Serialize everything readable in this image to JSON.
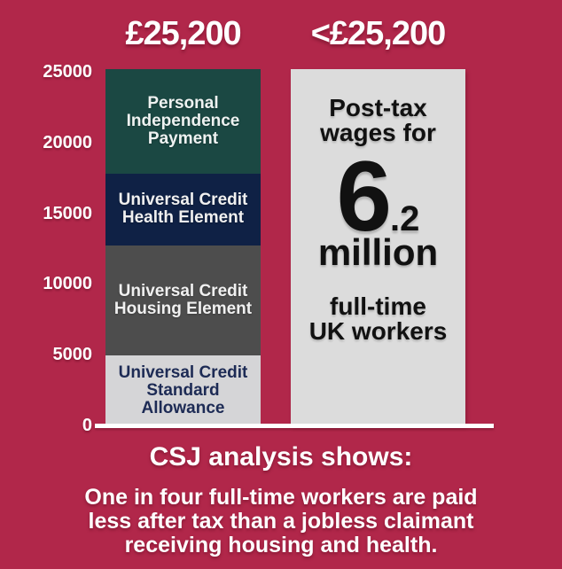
{
  "page": {
    "background_color": "#b1274a",
    "text_color_white": "#ffffff"
  },
  "chart_data": {
    "type": "bar",
    "stacked": true,
    "grid": false,
    "ylim": [
      0,
      25200
    ],
    "yticks": [
      {
        "label": "25000",
        "value": 25000
      },
      {
        "label": "20000",
        "value": 20000
      },
      {
        "label": "15000",
        "value": 15000
      },
      {
        "label": "10000",
        "value": 10000
      },
      {
        "label": "5000",
        "value": 5000
      },
      {
        "label": "0",
        "value": 0
      }
    ],
    "columns": [
      {
        "header": "£25,200",
        "total": 25200,
        "segments": [
          {
            "id": "uc-standard-allowance",
            "label_lines": [
              "Universal Credit",
              "Standard",
              "Allowance"
            ],
            "value": 4950,
            "color": "#d5d5d7",
            "text_color": "#1d2b55"
          },
          {
            "id": "uc-housing-element",
            "label_lines": [
              "Universal Credit",
              "Housing Element"
            ],
            "value": 7800,
            "color": "#4d4d4d",
            "text_color": "#f0f0f0"
          },
          {
            "id": "uc-health-element",
            "label_lines": [
              "Universal Credit",
              "Health Element"
            ],
            "value": 5050,
            "color": "#0f2145",
            "text_color": "#f0f0f0"
          },
          {
            "id": "personal-independence-payment",
            "label_lines": [
              "Personal",
              "Independence",
              "Payment"
            ],
            "value": 7400,
            "color": "#1b4843",
            "text_color": "#eef2f1"
          }
        ]
      },
      {
        "header": "<£25,200",
        "color": "#dcdcdc",
        "text_color": "#111111",
        "annotation": {
          "top_line_1": "Post-tax",
          "top_line_2": "wages for",
          "big_number": "6",
          "big_number_decimal": ".2",
          "unit": "million",
          "bottom_line_1": "full-time",
          "bottom_line_2": "UK workers"
        }
      }
    ]
  },
  "footer": {
    "title": "CSJ analysis shows:",
    "lines": [
      "One in four full-time workers are paid",
      "less after tax than a jobless claimant",
      "receiving housing and health."
    ]
  }
}
